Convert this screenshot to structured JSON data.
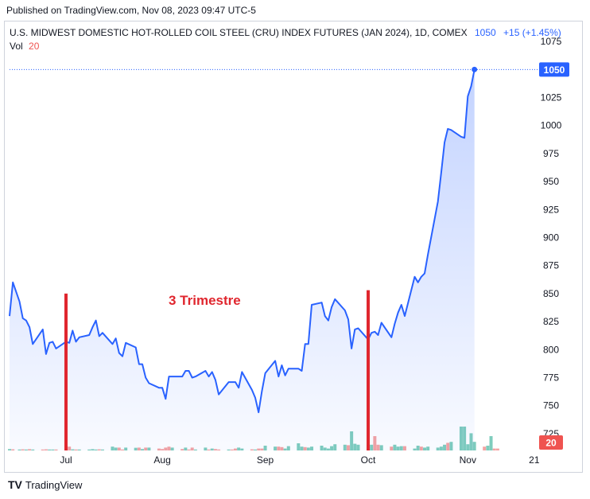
{
  "header": {
    "published": "Published on TradingView.com, Nov 08, 2023 09:47 UTC-5"
  },
  "legend": {
    "symbol": "U.S. MIDWEST DOMESTIC HOT-ROLLED COIL STEEL (CRU) INDEX FUTURES (JAN 2024), 1D, COMEX",
    "last": "1050",
    "change": "+15 (+1.45%)",
    "vol_label": "Vol",
    "vol_value": "20"
  },
  "badges": {
    "price": "1050",
    "volume": "20"
  },
  "annotation": {
    "text": "3 Trimestre"
  },
  "footer": {
    "logo": "TV",
    "brand": "TradingView"
  },
  "colors": {
    "line": "#2962ff",
    "area": "#2962ff",
    "vol_up": "#7fcdbd",
    "vol_down": "#f4a3a3",
    "marker": "#e0262e",
    "badge_price": "#2962ff",
    "badge_vol": "#ef5350"
  },
  "chart_data": {
    "type": "line",
    "title": "U.S. MIDWEST DOMESTIC HOT-ROLLED COIL STEEL (CRU) INDEX FUTURES (JAN 2024), 1D, COMEX",
    "ylim": [
      710,
      1090
    ],
    "yticks": [
      725,
      750,
      775,
      800,
      825,
      850,
      875,
      900,
      925,
      950,
      975,
      1000,
      1025,
      1050,
      1075
    ],
    "xlim": [
      "2023-06-16",
      "2023-11-22"
    ],
    "xticks": [
      {
        "label": "Jul",
        "date": "2023-07-03"
      },
      {
        "label": "Aug",
        "date": "2023-08-01"
      },
      {
        "label": "Sep",
        "date": "2023-09-01"
      },
      {
        "label": "Oct",
        "date": "2023-10-02"
      },
      {
        "label": "Nov",
        "date": "2023-11-01"
      },
      {
        "label": "21",
        "date": "2023-11-21"
      }
    ],
    "series": [
      {
        "values": [
          [
            "2023-06-16",
            830
          ],
          [
            "2023-06-17",
            860
          ],
          [
            "2023-06-19",
            843
          ],
          [
            "2023-06-20",
            828
          ],
          [
            "2023-06-21",
            826
          ],
          [
            "2023-06-22",
            820
          ],
          [
            "2023-06-23",
            805
          ],
          [
            "2023-06-26",
            818
          ],
          [
            "2023-06-27",
            796
          ],
          [
            "2023-06-28",
            806
          ],
          [
            "2023-06-29",
            807
          ],
          [
            "2023-06-30",
            801
          ],
          [
            "2023-07-03",
            807
          ],
          [
            "2023-07-04",
            806
          ],
          [
            "2023-07-05",
            817
          ],
          [
            "2023-07-06",
            807
          ],
          [
            "2023-07-07",
            811
          ],
          [
            "2023-07-10",
            813
          ],
          [
            "2023-07-11",
            820
          ],
          [
            "2023-07-12",
            826
          ],
          [
            "2023-07-13",
            812
          ],
          [
            "2023-07-14",
            815
          ],
          [
            "2023-07-17",
            805
          ],
          [
            "2023-07-18",
            810
          ],
          [
            "2023-07-19",
            797
          ],
          [
            "2023-07-20",
            794
          ],
          [
            "2023-07-21",
            806
          ],
          [
            "2023-07-24",
            802
          ],
          [
            "2023-07-25",
            787
          ],
          [
            "2023-07-26",
            787
          ],
          [
            "2023-07-27",
            775
          ],
          [
            "2023-07-28",
            770
          ],
          [
            "2023-07-31",
            766
          ],
          [
            "2023-08-01",
            766
          ],
          [
            "2023-08-02",
            756
          ],
          [
            "2023-08-03",
            776
          ],
          [
            "2023-08-04",
            776
          ],
          [
            "2023-08-07",
            776
          ],
          [
            "2023-08-08",
            781
          ],
          [
            "2023-08-09",
            781
          ],
          [
            "2023-08-10",
            775
          ],
          [
            "2023-08-11",
            776
          ],
          [
            "2023-08-14",
            781
          ],
          [
            "2023-08-15",
            776
          ],
          [
            "2023-08-16",
            780
          ],
          [
            "2023-08-17",
            773
          ],
          [
            "2023-08-18",
            760
          ],
          [
            "2023-08-21",
            771
          ],
          [
            "2023-08-22",
            771
          ],
          [
            "2023-08-23",
            771
          ],
          [
            "2023-08-24",
            766
          ],
          [
            "2023-08-25",
            780
          ],
          [
            "2023-08-28",
            764
          ],
          [
            "2023-08-29",
            757
          ],
          [
            "2023-08-30",
            744
          ],
          [
            "2023-08-31",
            763
          ],
          [
            "2023-09-01",
            779
          ],
          [
            "2023-09-04",
            790
          ],
          [
            "2023-09-05",
            776
          ],
          [
            "2023-09-06",
            786
          ],
          [
            "2023-09-07",
            777
          ],
          [
            "2023-09-08",
            783
          ],
          [
            "2023-09-11",
            783
          ],
          [
            "2023-09-12",
            781
          ],
          [
            "2023-09-13",
            805
          ],
          [
            "2023-09-14",
            805
          ],
          [
            "2023-09-15",
            840
          ],
          [
            "2023-09-18",
            842
          ],
          [
            "2023-09-19",
            830
          ],
          [
            "2023-09-20",
            826
          ],
          [
            "2023-09-21",
            838
          ],
          [
            "2023-09-22",
            845
          ],
          [
            "2023-09-25",
            835
          ],
          [
            "2023-09-26",
            827
          ],
          [
            "2023-09-27",
            801
          ],
          [
            "2023-09-28",
            818
          ],
          [
            "2023-09-29",
            819
          ],
          [
            "2023-10-02",
            809
          ],
          [
            "2023-10-03",
            815
          ],
          [
            "2023-10-04",
            816
          ],
          [
            "2023-10-05",
            813
          ],
          [
            "2023-10-06",
            824
          ],
          [
            "2023-10-09",
            811
          ],
          [
            "2023-10-10",
            823
          ],
          [
            "2023-10-11",
            833
          ],
          [
            "2023-10-12",
            840
          ],
          [
            "2023-10-13",
            830
          ],
          [
            "2023-10-16",
            865
          ],
          [
            "2023-10-17",
            860
          ],
          [
            "2023-10-18",
            865
          ],
          [
            "2023-10-19",
            868
          ],
          [
            "2023-10-20",
            885
          ],
          [
            "2023-10-23",
            932
          ],
          [
            "2023-10-24",
            958
          ],
          [
            "2023-10-25",
            985
          ],
          [
            "2023-10-26",
            997
          ],
          [
            "2023-10-27",
            996
          ],
          [
            "2023-10-30",
            990
          ],
          [
            "2023-10-31",
            989
          ],
          [
            "2023-11-01",
            1026
          ],
          [
            "2023-11-02",
            1035
          ],
          [
            "2023-11-03",
            1050
          ]
        ]
      }
    ],
    "volume": {
      "ylim": [
        0,
        250
      ],
      "bars": [
        [
          "2023-06-16",
          15,
          "up"
        ],
        [
          "2023-06-17",
          12,
          "down"
        ],
        [
          "2023-06-19",
          10,
          "up"
        ],
        [
          "2023-06-20",
          12,
          "down"
        ],
        [
          "2023-06-21",
          10,
          "up"
        ],
        [
          "2023-06-22",
          14,
          "down"
        ],
        [
          "2023-06-23",
          10,
          "up"
        ],
        [
          "2023-06-26",
          10,
          "down"
        ],
        [
          "2023-06-27",
          12,
          "down"
        ],
        [
          "2023-06-28",
          10,
          "up"
        ],
        [
          "2023-06-29",
          10,
          "up"
        ],
        [
          "2023-06-30",
          10,
          "down"
        ],
        [
          "2023-07-03",
          10,
          "up"
        ],
        [
          "2023-07-04",
          40,
          "down"
        ],
        [
          "2023-07-05",
          12,
          "up"
        ],
        [
          "2023-07-06",
          10,
          "down"
        ],
        [
          "2023-07-07",
          10,
          "up"
        ],
        [
          "2023-07-10",
          10,
          "up"
        ],
        [
          "2023-07-11",
          14,
          "up"
        ],
        [
          "2023-07-12",
          10,
          "up"
        ],
        [
          "2023-07-13",
          12,
          "down"
        ],
        [
          "2023-07-14",
          10,
          "up"
        ],
        [
          "2023-07-17",
          40,
          "up"
        ],
        [
          "2023-07-18",
          30,
          "up"
        ],
        [
          "2023-07-19",
          30,
          "down"
        ],
        [
          "2023-07-20",
          10,
          "down"
        ],
        [
          "2023-07-21",
          30,
          "up"
        ],
        [
          "2023-07-24",
          28,
          "up"
        ],
        [
          "2023-07-25",
          30,
          "down"
        ],
        [
          "2023-07-26",
          15,
          "up"
        ],
        [
          "2023-07-27",
          30,
          "down"
        ],
        [
          "2023-07-28",
          30,
          "up"
        ],
        [
          "2023-07-31",
          20,
          "down"
        ],
        [
          "2023-08-01",
          15,
          "down"
        ],
        [
          "2023-08-02",
          30,
          "down"
        ],
        [
          "2023-08-03",
          40,
          "down"
        ],
        [
          "2023-08-04",
          30,
          "up"
        ],
        [
          "2023-08-07",
          15,
          "down"
        ],
        [
          "2023-08-08",
          30,
          "up"
        ],
        [
          "2023-08-09",
          10,
          "down"
        ],
        [
          "2023-08-10",
          30,
          "down"
        ],
        [
          "2023-08-11",
          10,
          "up"
        ],
        [
          "2023-08-14",
          30,
          "up"
        ],
        [
          "2023-08-15",
          10,
          "down"
        ],
        [
          "2023-08-16",
          20,
          "up"
        ],
        [
          "2023-08-17",
          15,
          "down"
        ],
        [
          "2023-08-18",
          10,
          "down"
        ],
        [
          "2023-08-21",
          10,
          "up"
        ],
        [
          "2023-08-22",
          10,
          "down"
        ],
        [
          "2023-08-23",
          20,
          "down"
        ],
        [
          "2023-08-24",
          30,
          "up"
        ],
        [
          "2023-08-25",
          20,
          "up"
        ],
        [
          "2023-08-28",
          12,
          "down"
        ],
        [
          "2023-08-29",
          10,
          "up"
        ],
        [
          "2023-08-30",
          20,
          "down"
        ],
        [
          "2023-08-31",
          20,
          "down"
        ],
        [
          "2023-09-01",
          50,
          "up"
        ],
        [
          "2023-09-04",
          40,
          "up"
        ],
        [
          "2023-09-05",
          40,
          "down"
        ],
        [
          "2023-09-06",
          35,
          "down"
        ],
        [
          "2023-09-07",
          20,
          "up"
        ],
        [
          "2023-09-08",
          45,
          "up"
        ],
        [
          "2023-09-11",
          75,
          "up"
        ],
        [
          "2023-09-12",
          40,
          "up"
        ],
        [
          "2023-09-13",
          35,
          "down"
        ],
        [
          "2023-09-14",
          30,
          "up"
        ],
        [
          "2023-09-15",
          40,
          "up"
        ],
        [
          "2023-09-18",
          50,
          "up"
        ],
        [
          "2023-09-19",
          30,
          "up"
        ],
        [
          "2023-09-20",
          20,
          "up"
        ],
        [
          "2023-09-21",
          45,
          "up"
        ],
        [
          "2023-09-22",
          65,
          "up"
        ],
        [
          "2023-09-25",
          60,
          "up"
        ],
        [
          "2023-09-26",
          55,
          "down"
        ],
        [
          "2023-09-27",
          200,
          "up"
        ],
        [
          "2023-09-28",
          70,
          "up"
        ],
        [
          "2023-09-29",
          60,
          "up"
        ],
        [
          "2023-10-02",
          60,
          "up"
        ],
        [
          "2023-10-03",
          60,
          "up"
        ],
        [
          "2023-10-04",
          150,
          "down"
        ],
        [
          "2023-10-05",
          60,
          "down"
        ],
        [
          "2023-10-06",
          55,
          "up"
        ],
        [
          "2023-10-09",
          40,
          "down"
        ],
        [
          "2023-10-10",
          60,
          "up"
        ],
        [
          "2023-10-11",
          40,
          "up"
        ],
        [
          "2023-10-12",
          45,
          "up"
        ],
        [
          "2023-10-13",
          45,
          "down"
        ],
        [
          "2023-10-16",
          20,
          "up"
        ],
        [
          "2023-10-17",
          50,
          "up"
        ],
        [
          "2023-10-18",
          40,
          "down"
        ],
        [
          "2023-10-19",
          30,
          "up"
        ],
        [
          "2023-10-20",
          40,
          "up"
        ],
        [
          "2023-10-23",
          30,
          "up"
        ],
        [
          "2023-10-24",
          40,
          "up"
        ],
        [
          "2023-10-25",
          60,
          "up"
        ],
        [
          "2023-10-26",
          80,
          "down"
        ],
        [
          "2023-10-27",
          90,
          "up"
        ],
        [
          "2023-10-30",
          375,
          "up"
        ],
        [
          "2023-10-31",
          250,
          "up"
        ],
        [
          "2023-11-01",
          65,
          "up"
        ],
        [
          "2023-11-02",
          180,
          "up"
        ],
        [
          "2023-11-03",
          90,
          "up"
        ],
        [
          "2023-11-06",
          40,
          "down"
        ],
        [
          "2023-11-07",
          50,
          "up"
        ],
        [
          "2023-11-08",
          150,
          "up"
        ],
        [
          "2023-11-09",
          20,
          "down"
        ],
        [
          "2023-11-10",
          20,
          "down"
        ]
      ]
    },
    "markers": [
      {
        "date": "2023-07-03",
        "from": 710,
        "to": 850
      },
      {
        "date": "2023-10-02",
        "from": 710,
        "to": 853
      }
    ]
  }
}
